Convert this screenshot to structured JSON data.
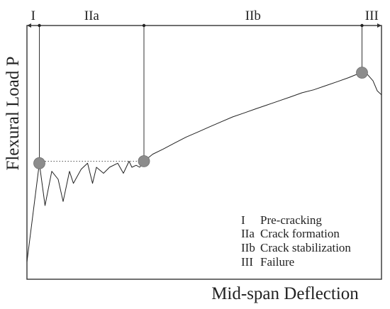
{
  "chart_data": {
    "type": "line",
    "title": "",
    "xlabel": "Mid-span Deflection",
    "ylabel": "Flexural Load P",
    "xlim": [
      0,
      100
    ],
    "ylim": [
      0,
      100
    ],
    "x_ticks": false,
    "y_ticks": false,
    "grid": false,
    "stages": [
      {
        "label": "I",
        "start": 0,
        "end": 3.5
      },
      {
        "label": "IIa",
        "start": 3.5,
        "end": 33
      },
      {
        "label": "IIb",
        "start": 33,
        "end": 94.5
      },
      {
        "label": "III",
        "start": 94.5,
        "end": 100
      }
    ],
    "legend": {
      "placement": "bottom-right",
      "entries": [
        {
          "symbol": "I",
          "text": "Pre-cracking"
        },
        {
          "symbol": "IIa",
          "text": "Crack formation"
        },
        {
          "symbol": "IIb",
          "text": "Crack stabilization"
        },
        {
          "symbol": "III",
          "text": "Failure"
        }
      ]
    },
    "key_points": [
      {
        "name": "first-crack",
        "x": 3.5,
        "y": 52
      },
      {
        "name": "crack-stabilization-onset",
        "x": 33,
        "y": 53
      },
      {
        "name": "peak-load",
        "x": 94.5,
        "y": 97
      }
    ],
    "plateau": {
      "from": 3.5,
      "to": 33,
      "y": 53
    },
    "series": [
      {
        "x": [
          0,
          3.5,
          5.1,
          7.0,
          8.8,
          10.2,
          12.0,
          13.1,
          15.3,
          17.1,
          18.5,
          19.6,
          21.6,
          23.3,
          25.6,
          27.2,
          28.8,
          29.6,
          30.8,
          31.8,
          33.0,
          35.5,
          38.4,
          41.6,
          44.9,
          48.2,
          51.4,
          54.7,
          58.0,
          61.3,
          64.5,
          67.8,
          71.1,
          74.4,
          77.6,
          80.9,
          84.2,
          87.5,
          90.7,
          92.8,
          94.5,
          96.1,
          97.6,
          98.8,
          100
        ],
        "y": [
          3,
          52,
          31,
          48,
          44,
          33,
          48,
          42,
          49,
          52,
          42,
          50,
          47,
          50,
          52,
          47,
          53,
          50,
          51,
          50,
          53,
          56.5,
          59,
          62,
          65,
          67.5,
          70,
          72.5,
          75,
          77,
          79,
          81,
          83,
          85,
          87,
          88.5,
          90.5,
          92.5,
          94.5,
          96,
          97,
          96,
          93,
          88,
          86
        ]
      }
    ]
  }
}
